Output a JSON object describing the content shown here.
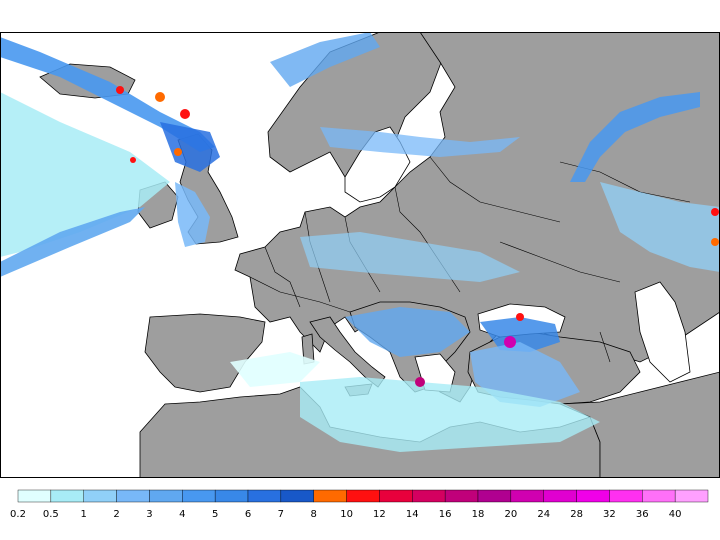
{
  "map": {
    "colors": {
      "land": "#9e9e9e",
      "sea": "#ffffff",
      "border": "#000000"
    }
  },
  "legend": {
    "labels": [
      "0.2",
      "0.5",
      "1",
      "2",
      "3",
      "4",
      "5",
      "6",
      "7",
      "8",
      "10",
      "12",
      "14",
      "16",
      "18",
      "20",
      "24",
      "28",
      "32",
      "36",
      "40"
    ],
    "colors": [
      "#e0ffff",
      "#a8ecf6",
      "#90d0f8",
      "#78b8f8",
      "#60a8f0",
      "#4898f0",
      "#3888e8",
      "#2870e0",
      "#1858c8",
      "#ff6a00",
      "#ff1010",
      "#e8003c",
      "#d40060",
      "#c0007a",
      "#b00090",
      "#d000b0",
      "#e000d0",
      "#f000e8",
      "#ff30f0",
      "#ff70f8",
      "#ffa0ff"
    ]
  }
}
